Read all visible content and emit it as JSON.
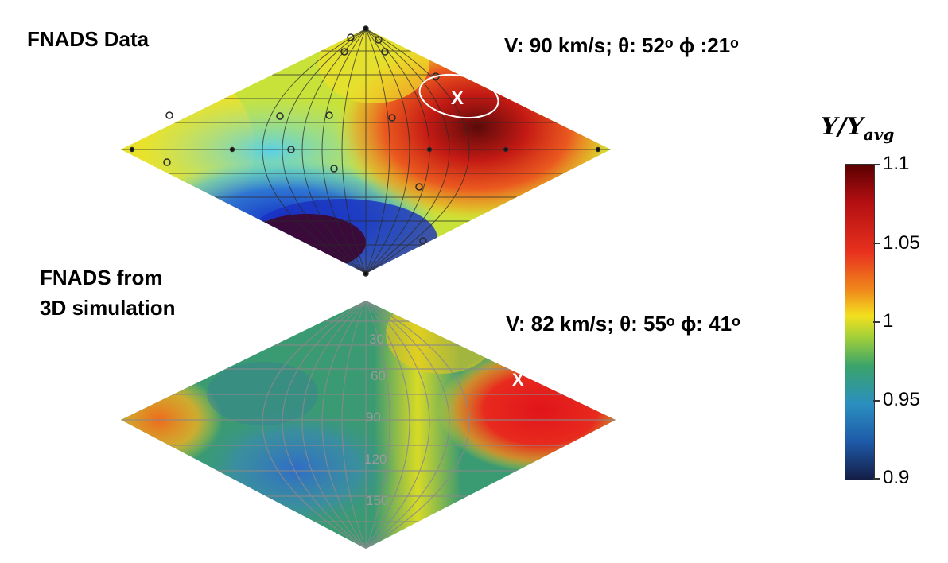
{
  "top_map": {
    "title": "FNADS Data",
    "params": "V: 90 km/s;  θ: 52ᵒ ϕ :21ᵒ",
    "marker": "X"
  },
  "bottom_map": {
    "title_line1": "FNADS from",
    "title_line2": "3D simulation",
    "params": "V: 82 km/s;  θ: 55ᵒ ϕ: 41ᵒ",
    "marker": "X",
    "latitude_labels": [
      "30",
      "60",
      "90",
      "120",
      "150"
    ]
  },
  "colorbar": {
    "title_main": "Y/Y",
    "title_sub": "avg",
    "ticks": [
      "1.1",
      "1.05",
      "1",
      "0.95",
      "0.9"
    ],
    "colors": [
      "#5a0000",
      "#b40f12",
      "#e8321e",
      "#f08a1c",
      "#f3e01e",
      "#9fcf3a",
      "#3aa36a",
      "#2a8fbf",
      "#1e5aa8",
      "#141e46"
    ]
  }
}
